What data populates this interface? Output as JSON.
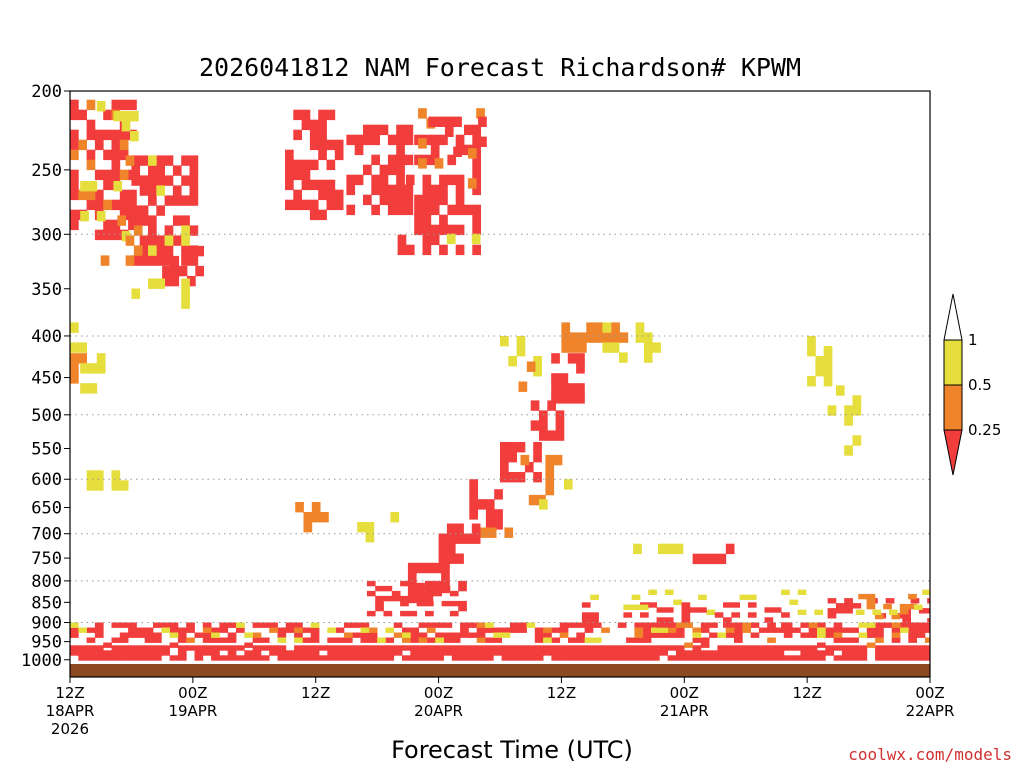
{
  "chart_data": {
    "type": "heatmap",
    "title": "2026041812 NAM Forecast Richardson# KPWM",
    "xlabel": "Forecast Time (UTC)",
    "ylabel": "",
    "credit": "coolwx.com/models",
    "x_axis": {
      "range_hours": [
        0,
        84
      ],
      "ticks": [
        {
          "hour": 0,
          "line1": "12Z",
          "line2": "18APR",
          "line3": "2026"
        },
        {
          "hour": 12,
          "line1": "00Z",
          "line2": "19APR",
          "line3": ""
        },
        {
          "hour": 24,
          "line1": "12Z",
          "line2": "",
          "line3": ""
        },
        {
          "hour": 36,
          "line1": "00Z",
          "line2": "20APR",
          "line3": ""
        },
        {
          "hour": 48,
          "line1": "12Z",
          "line2": "",
          "line3": ""
        },
        {
          "hour": 60,
          "line1": "00Z",
          "line2": "21APR",
          "line3": ""
        },
        {
          "hour": 72,
          "line1": "12Z",
          "line2": "",
          "line3": ""
        },
        {
          "hour": 84,
          "line1": "00Z",
          "line2": "22APR",
          "line3": ""
        }
      ]
    },
    "y_axis": {
      "label": "",
      "scale": "log-pressure",
      "range_hpa": [
        200,
        1050
      ],
      "ticks": [
        200,
        250,
        300,
        350,
        400,
        450,
        500,
        550,
        600,
        650,
        700,
        750,
        800,
        850,
        900,
        950,
        1000
      ],
      "gridlines": [
        300,
        400,
        500,
        600,
        700,
        800,
        900
      ]
    },
    "legend": {
      "placement": "right",
      "levels": [
        {
          "label": "1",
          "value": 1.0
        },
        {
          "label": "0.5",
          "value": 0.5
        },
        {
          "label": "0.25",
          "value": 0.25
        }
      ],
      "bins": [
        {
          "range": "> 1",
          "color": "#ffffff"
        },
        {
          "range": "0.5 - 1",
          "color": "#e5de3c"
        },
        {
          "range": "0.25 - 0.5",
          "color": "#f0842a"
        },
        {
          "range": "< 0.25",
          "color": "#f23d3d"
        }
      ]
    },
    "colors": {
      "low": "#f23d3d",
      "mid": "#f0842a",
      "high": "#e5de3c",
      "none": "#ffffff",
      "ground": "#8b4a22"
    },
    "regions": [
      {
        "category": "low",
        "hour": [
          0,
          84
        ],
        "p": [
          960,
          1000
        ],
        "density": 0.9
      },
      {
        "category": "low",
        "hour": [
          0,
          84
        ],
        "p": [
          900,
          960
        ],
        "density": 0.45
      },
      {
        "category": "mid",
        "hour": [
          0,
          84
        ],
        "p": [
          900,
          960
        ],
        "density": 0.15
      },
      {
        "category": "high",
        "hour": [
          0,
          84
        ],
        "p": [
          900,
          960
        ],
        "density": 0.15
      },
      {
        "category": "low",
        "hour": [
          0,
          6
        ],
        "p": [
          205,
          300
        ],
        "density": 0.55
      },
      {
        "category": "mid",
        "hour": [
          0,
          6
        ],
        "p": [
          205,
          300
        ],
        "density": 0.2
      },
      {
        "category": "high",
        "hour": [
          1,
          6
        ],
        "p": [
          200,
          300
        ],
        "density": 0.2
      },
      {
        "category": "low",
        "hour": [
          6,
          12
        ],
        "p": [
          240,
          320
        ],
        "density": 0.55
      },
      {
        "category": "mid",
        "hour": [
          3,
          12
        ],
        "p": [
          240,
          320
        ],
        "density": 0.2
      },
      {
        "category": "high",
        "hour": [
          6,
          12
        ],
        "p": [
          240,
          320
        ],
        "density": 0.15
      },
      {
        "category": "low",
        "hour": [
          9,
          13
        ],
        "p": [
          310,
          345
        ],
        "density": 0.5
      },
      {
        "category": "high",
        "hour": [
          6,
          11
        ],
        "p": [
          340,
          370
        ],
        "density": 0.3
      },
      {
        "category": "low",
        "hour": [
          21,
          26
        ],
        "p": [
          205,
          280
        ],
        "density": 0.55
      },
      {
        "category": "low",
        "hour": [
          27,
          33
        ],
        "p": [
          220,
          280
        ],
        "density": 0.6
      },
      {
        "category": "low",
        "hour": [
          32,
          40
        ],
        "p": [
          220,
          310
        ],
        "density": 0.5
      },
      {
        "category": "mid",
        "hour": [
          34,
          40
        ],
        "p": [
          210,
          260
        ],
        "density": 0.3
      },
      {
        "category": "high",
        "hour": [
          36,
          40
        ],
        "p": [
          260,
          300
        ],
        "density": 0.2
      },
      {
        "category": "low",
        "hour": [
          35,
          40
        ],
        "p": [
          215,
          235
        ],
        "density": 0.7
      },
      {
        "category": "high",
        "hour": [
          0,
          1
        ],
        "p": [
          385,
          420
        ],
        "density": 0.6
      },
      {
        "category": "mid",
        "hour": [
          0,
          1
        ],
        "p": [
          420,
          450
        ],
        "density": 0.6
      },
      {
        "category": "high",
        "hour": [
          1,
          3
        ],
        "p": [
          420,
          460
        ],
        "density": 0.5
      },
      {
        "category": "high",
        "hour": [
          0,
          5
        ],
        "p": [
          585,
          610
        ],
        "density": 0.6
      },
      {
        "category": "low",
        "hour": [
          47,
          50
        ],
        "p": [
          420,
          480
        ],
        "density": 0.7
      },
      {
        "category": "low",
        "hour": [
          45,
          48
        ],
        "p": [
          480,
          530
        ],
        "density": 0.7
      },
      {
        "category": "low",
        "hour": [
          42,
          46
        ],
        "p": [
          540,
          600
        ],
        "density": 0.7
      },
      {
        "category": "mid",
        "hour": [
          44,
          48
        ],
        "p": [
          560,
          630
        ],
        "density": 0.35
      },
      {
        "category": "low",
        "hour": [
          39,
          42
        ],
        "p": [
          600,
          680
        ],
        "density": 0.7
      },
      {
        "category": "mid",
        "hour": [
          40,
          43
        ],
        "p": [
          650,
          700
        ],
        "density": 0.35
      },
      {
        "category": "low",
        "hour": [
          36,
          40
        ],
        "p": [
          680,
          760
        ],
        "density": 0.6
      },
      {
        "category": "low",
        "hour": [
          33,
          37
        ],
        "p": [
          760,
          830
        ],
        "density": 0.7
      },
      {
        "category": "mid",
        "hour": [
          48,
          55
        ],
        "p": [
          385,
          410
        ],
        "density": 0.55
      },
      {
        "category": "high",
        "hour": [
          52,
          57
        ],
        "p": [
          385,
          430
        ],
        "density": 0.4
      },
      {
        "category": "high",
        "hour": [
          42,
          46
        ],
        "p": [
          400,
          460
        ],
        "density": 0.3
      },
      {
        "category": "mid",
        "hour": [
          43,
          45
        ],
        "p": [
          430,
          460
        ],
        "density": 0.5
      },
      {
        "category": "high",
        "hour": [
          45,
          49
        ],
        "p": [
          600,
          640
        ],
        "density": 0.3
      },
      {
        "category": "low",
        "hour": [
          29,
          38
        ],
        "p": [
          800,
          880
        ],
        "density": 0.5
      },
      {
        "category": "low",
        "hour": [
          60,
          65
        ],
        "p": [
          720,
          760
        ],
        "density": 0.4
      },
      {
        "category": "high",
        "hour": [
          55,
          60
        ],
        "p": [
          720,
          740
        ],
        "density": 0.5
      },
      {
        "category": "high",
        "hour": [
          72,
          74
        ],
        "p": [
          400,
          460
        ],
        "density": 0.4
      },
      {
        "category": "high",
        "hour": [
          74,
          77
        ],
        "p": [
          460,
          560
        ],
        "density": 0.25
      },
      {
        "category": "low",
        "hour": [
          74,
          84
        ],
        "p": [
          840,
          900
        ],
        "density": 0.3
      },
      {
        "category": "mid",
        "hour": [
          77,
          83
        ],
        "p": [
          830,
          900
        ],
        "density": 0.25
      },
      {
        "category": "high",
        "hour": [
          50,
          84
        ],
        "p": [
          820,
          880
        ],
        "density": 0.08
      },
      {
        "category": "low",
        "hour": [
          50,
          70
        ],
        "p": [
          850,
          900
        ],
        "density": 0.3
      },
      {
        "category": "high",
        "hour": [
          24,
          36
        ],
        "p": [
          640,
          700
        ],
        "density": 0.1
      },
      {
        "category": "mid",
        "hour": [
          22,
          25
        ],
        "p": [
          640,
          680
        ],
        "density": 0.45
      }
    ]
  }
}
